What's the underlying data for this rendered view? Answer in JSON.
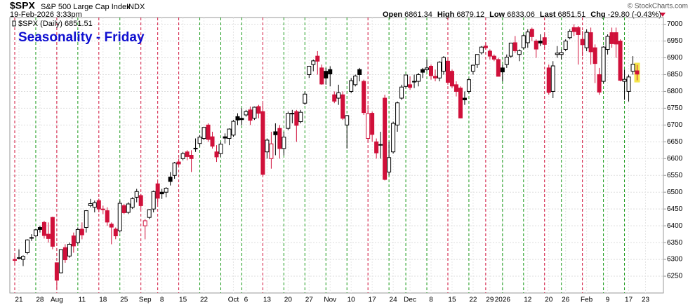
{
  "chart_data": {
    "type": "candlestick",
    "header": {
      "symbol": "$SPX",
      "name": "S&P 500 Large Cap Index",
      "exchange": "INDX",
      "date": "19-Feb-2026 3:33pm",
      "stats": [
        {
          "label": "Open",
          "value": "6861.34"
        },
        {
          "label": "High",
          "value": "6879.12"
        },
        {
          "label": "Low",
          "value": "6833.06"
        },
        {
          "label": "Last",
          "value": "6851.51"
        },
        {
          "label": "Chg",
          "value": "-29.80 (-0.43%)"
        }
      ],
      "copyright": "© StockCharts.com"
    },
    "legend": "$SPX (Daily) 6851.51",
    "title": "Seasonality - Friday",
    "up_color": "#000000",
    "down_color": "#d0103a",
    "friday_up_color": "#1a9a1a",
    "friday_down_color": "#d0103a",
    "highlight_color": "#f5e64a",
    "title_color": "#1010d0",
    "ylim": [
      6200,
      7020
    ],
    "yticks": [
      6250,
      6300,
      6350,
      6400,
      6450,
      6500,
      6550,
      6600,
      6650,
      6700,
      6750,
      6800,
      6850,
      6900,
      6950,
      7000
    ],
    "xticks": [
      {
        "value": "2025-07-21",
        "label": "21"
      },
      {
        "value": "2025-07-28",
        "label": "28"
      },
      {
        "value": "2025-08-01",
        "label": "Aug"
      },
      {
        "value": "2025-08-11",
        "label": "11"
      },
      {
        "value": "2025-08-18",
        "label": "18"
      },
      {
        "value": "2025-08-25",
        "label": "25"
      },
      {
        "value": "2025-09-02",
        "label": "Sep"
      },
      {
        "value": "2025-09-08",
        "label": "8"
      },
      {
        "value": "2025-09-15",
        "label": "15"
      },
      {
        "value": "2025-09-22",
        "label": "22"
      },
      {
        "value": "2025-10-01",
        "label": "Oct"
      },
      {
        "value": "2025-10-06",
        "label": "6"
      },
      {
        "value": "2025-10-13",
        "label": "13"
      },
      {
        "value": "2025-10-20",
        "label": "20"
      },
      {
        "value": "2025-10-27",
        "label": "27"
      },
      {
        "value": "2025-11-03",
        "label": "Nov"
      },
      {
        "value": "2025-11-10",
        "label": "10"
      },
      {
        "value": "2025-11-17",
        "label": "17"
      },
      {
        "value": "2025-11-24",
        "label": "24"
      },
      {
        "value": "2025-12-01",
        "label": "Dec"
      },
      {
        "value": "2025-12-08",
        "label": "8"
      },
      {
        "value": "2025-12-15",
        "label": "15"
      },
      {
        "value": "2025-12-22",
        "label": "22"
      },
      {
        "value": "2025-12-29",
        "label": "29"
      },
      {
        "value": "2026-01-02",
        "label": "2026"
      },
      {
        "value": "2026-01-12",
        "label": "12"
      },
      {
        "value": "2026-01-20",
        "label": "20"
      },
      {
        "value": "2026-01-26",
        "label": "26"
      },
      {
        "value": "2026-02-02",
        "label": "Feb"
      },
      {
        "value": "2026-02-09",
        "label": "9"
      },
      {
        "value": "2026-02-17",
        "label": "17"
      },
      {
        "value": "2026-02-23",
        "label": "23"
      }
    ],
    "x": [
      "2025-07-18",
      "2025-07-21",
      "2025-07-22",
      "2025-07-23",
      "2025-07-24",
      "2025-07-25",
      "2025-07-28",
      "2025-07-29",
      "2025-07-30",
      "2025-07-31",
      "2025-08-01",
      "2025-08-04",
      "2025-08-05",
      "2025-08-06",
      "2025-08-07",
      "2025-08-08",
      "2025-08-11",
      "2025-08-12",
      "2025-08-13",
      "2025-08-14",
      "2025-08-15",
      "2025-08-18",
      "2025-08-19",
      "2025-08-20",
      "2025-08-21",
      "2025-08-22",
      "2025-08-25",
      "2025-08-26",
      "2025-08-27",
      "2025-08-28",
      "2025-08-29",
      "2025-09-02",
      "2025-09-03",
      "2025-09-04",
      "2025-09-05",
      "2025-09-08",
      "2025-09-09",
      "2025-09-10",
      "2025-09-11",
      "2025-09-12",
      "2025-09-15",
      "2025-09-16",
      "2025-09-17",
      "2025-09-18",
      "2025-09-19",
      "2025-09-22",
      "2025-09-23",
      "2025-09-24",
      "2025-09-25",
      "2025-09-26",
      "2025-09-29",
      "2025-09-30",
      "2025-10-01",
      "2025-10-02",
      "2025-10-03",
      "2025-10-06",
      "2025-10-07",
      "2025-10-08",
      "2025-10-09",
      "2025-10-10",
      "2025-10-13",
      "2025-10-14",
      "2025-10-15",
      "2025-10-16",
      "2025-10-17",
      "2025-10-20",
      "2025-10-21",
      "2025-10-22",
      "2025-10-23",
      "2025-10-24",
      "2025-10-27",
      "2025-10-28",
      "2025-10-29",
      "2025-10-30",
      "2025-10-31",
      "2025-11-03",
      "2025-11-04",
      "2025-11-05",
      "2025-11-06",
      "2025-11-07",
      "2025-11-10",
      "2025-11-11",
      "2025-11-12",
      "2025-11-13",
      "2025-11-14",
      "2025-11-17",
      "2025-11-18",
      "2025-11-19",
      "2025-11-20",
      "2025-11-21",
      "2025-11-24",
      "2025-11-25",
      "2025-11-26",
      "2025-11-28",
      "2025-12-01",
      "2025-12-02",
      "2025-12-03",
      "2025-12-04",
      "2025-12-05",
      "2025-12-08",
      "2025-12-09",
      "2025-12-10",
      "2025-12-11",
      "2025-12-12",
      "2025-12-15",
      "2025-12-16",
      "2025-12-17",
      "2025-12-18",
      "2025-12-19",
      "2025-12-22",
      "2025-12-23",
      "2025-12-24",
      "2025-12-26",
      "2025-12-29",
      "2025-12-30",
      "2025-12-31",
      "2026-01-02",
      "2026-01-05",
      "2026-01-06",
      "2026-01-07",
      "2026-01-08",
      "2026-01-09",
      "2026-01-12",
      "2026-01-13",
      "2026-01-14",
      "2026-01-15",
      "2026-01-16",
      "2026-01-20",
      "2026-01-21",
      "2026-01-22",
      "2026-01-23",
      "2026-01-26",
      "2026-01-27",
      "2026-01-28",
      "2026-01-29",
      "2026-01-30",
      "2026-02-02",
      "2026-02-03",
      "2026-02-04",
      "2026-02-05",
      "2026-02-06",
      "2026-02-09",
      "2026-02-10",
      "2026-02-11",
      "2026-02-12",
      "2026-02-13",
      "2026-02-17",
      "2026-02-18",
      "2026-02-19"
    ],
    "ohlc": [
      [
        6300,
        6315,
        6285,
        6297
      ],
      [
        6305,
        6330,
        6300,
        6305
      ],
      [
        6300,
        6312,
        6280,
        6309
      ],
      [
        6320,
        6360,
        6315,
        6358
      ],
      [
        6365,
        6375,
        6355,
        6363
      ],
      [
        6370,
        6390,
        6365,
        6388
      ],
      [
        6395,
        6400,
        6380,
        6389
      ],
      [
        6410,
        6415,
        6362,
        6371
      ],
      [
        6375,
        6410,
        6350,
        6362
      ],
      [
        6425,
        6427,
        6330,
        6339
      ],
      [
        6290,
        6290,
        6212,
        6238
      ],
      [
        6260,
        6330,
        6258,
        6329
      ],
      [
        6335,
        6345,
        6290,
        6299
      ],
      [
        6310,
        6350,
        6305,
        6345
      ],
      [
        6370,
        6380,
        6320,
        6340
      ],
      [
        6350,
        6395,
        6345,
        6389
      ],
      [
        6390,
        6410,
        6360,
        6373
      ],
      [
        6395,
        6446,
        6380,
        6445
      ],
      [
        6460,
        6480,
        6455,
        6466
      ],
      [
        6455,
        6475,
        6440,
        6469
      ],
      [
        6475,
        6481,
        6440,
        6450
      ],
      [
        6450,
        6460,
        6435,
        6449
      ],
      [
        6445,
        6455,
        6400,
        6411
      ],
      [
        6405,
        6410,
        6345,
        6396
      ],
      [
        6390,
        6395,
        6360,
        6370
      ],
      [
        6385,
        6475,
        6380,
        6467
      ],
      [
        6460,
        6465,
        6435,
        6439
      ],
      [
        6440,
        6470,
        6435,
        6465
      ],
      [
        6455,
        6485,
        6450,
        6481
      ],
      [
        6485,
        6510,
        6470,
        6502
      ],
      [
        6490,
        6495,
        6450,
        6460
      ],
      [
        6400,
        6420,
        6360,
        6415
      ],
      [
        6425,
        6450,
        6420,
        6448
      ],
      [
        6450,
        6505,
        6440,
        6502
      ],
      [
        6525,
        6530,
        6465,
        6482
      ],
      [
        6500,
        6510,
        6480,
        6495
      ],
      [
        6500,
        6515,
        6485,
        6512
      ],
      [
        6545,
        6560,
        6520,
        6532
      ],
      [
        6550,
        6590,
        6540,
        6587
      ],
      [
        6590,
        6600,
        6580,
        6584
      ],
      [
        6600,
        6620,
        6595,
        6615
      ],
      [
        6620,
        6625,
        6595,
        6606
      ],
      [
        6610,
        6625,
        6560,
        6600
      ],
      [
        6630,
        6660,
        6620,
        6631
      ],
      [
        6645,
        6670,
        6635,
        6664
      ],
      [
        6660,
        6695,
        6655,
        6693
      ],
      [
        6700,
        6705,
        6650,
        6657
      ],
      [
        6665,
        6680,
        6630,
        6637
      ],
      [
        6620,
        6640,
        6590,
        6605
      ],
      [
        6615,
        6650,
        6605,
        6643
      ],
      [
        6665,
        6675,
        6645,
        6661
      ],
      [
        6660,
        6690,
        6640,
        6688
      ],
      [
        6670,
        6715,
        6665,
        6711
      ],
      [
        6725,
        6735,
        6700,
        6715
      ],
      [
        6720,
        6750,
        6700,
        6716
      ],
      [
        6730,
        6745,
        6725,
        6740
      ],
      [
        6745,
        6755,
        6700,
        6714
      ],
      [
        6720,
        6755,
        6715,
        6753
      ],
      [
        6755,
        6760,
        6720,
        6735
      ],
      [
        6740,
        6765,
        6550,
        6553
      ],
      [
        6620,
        6660,
        6600,
        6655
      ],
      [
        6600,
        6680,
        6570,
        6644
      ],
      [
        6680,
        6705,
        6610,
        6671
      ],
      [
        6690,
        6700,
        6600,
        6630
      ],
      [
        6630,
        6680,
        6610,
        6664
      ],
      [
        6690,
        6740,
        6685,
        6735
      ],
      [
        6735,
        6745,
        6705,
        6735
      ],
      [
        6740,
        6745,
        6650,
        6699
      ],
      [
        6710,
        6745,
        6705,
        6738
      ],
      [
        6765,
        6800,
        6760,
        6792
      ],
      [
        6850,
        6876,
        6840,
        6875
      ],
      [
        6880,
        6895,
        6860,
        6891
      ],
      [
        6905,
        6920,
        6850,
        6890
      ],
      [
        6870,
        6880,
        6820,
        6822
      ],
      [
        6860,
        6870,
        6820,
        6840
      ],
      [
        6865,
        6875,
        6815,
        6852
      ],
      [
        6790,
        6800,
        6765,
        6771
      ],
      [
        6780,
        6820,
        6760,
        6796
      ],
      [
        6790,
        6800,
        6715,
        6720
      ],
      [
        6700,
        6730,
        6630,
        6728
      ],
      [
        6800,
        6840,
        6795,
        6832
      ],
      [
        6820,
        6850,
        6815,
        6846
      ],
      [
        6865,
        6870,
        6830,
        6850
      ],
      [
        6830,
        6835,
        6730,
        6737
      ],
      [
        6660,
        6760,
        6650,
        6734
      ],
      [
        6735,
        6740,
        6650,
        6672
      ],
      [
        6650,
        6660,
        6600,
        6617
      ],
      [
        6640,
        6680,
        6600,
        6642
      ],
      [
        6780,
        6790,
        6535,
        6538
      ],
      [
        6560,
        6650,
        6550,
        6603
      ],
      [
        6620,
        6710,
        6615,
        6705
      ],
      [
        6700,
        6770,
        6680,
        6766
      ],
      [
        6780,
        6820,
        6775,
        6813
      ],
      [
        6815,
        6850,
        6810,
        6849
      ],
      [
        6820,
        6845,
        6805,
        6812
      ],
      [
        6830,
        6850,
        6810,
        6829
      ],
      [
        6830,
        6855,
        6815,
        6850
      ],
      [
        6865,
        6870,
        6840,
        6857
      ],
      [
        6865,
        6895,
        6860,
        6870
      ],
      [
        6875,
        6880,
        6835,
        6847
      ],
      [
        6845,
        6865,
        6830,
        6840
      ],
      [
        6840,
        6890,
        6830,
        6887
      ],
      [
        6860,
        6905,
        6850,
        6901
      ],
      [
        6890,
        6895,
        6820,
        6827
      ],
      [
        6860,
        6865,
        6810,
        6816
      ],
      [
        6820,
        6830,
        6785,
        6800
      ],
      [
        6810,
        6815,
        6720,
        6721
      ],
      [
        6780,
        6800,
        6760,
        6775
      ],
      [
        6800,
        6840,
        6795,
        6835
      ],
      [
        6860,
        6880,
        6850,
        6878
      ],
      [
        6880,
        6910,
        6870,
        6910
      ],
      [
        6915,
        6935,
        6910,
        6932
      ],
      [
        6935,
        6945,
        6925,
        6930
      ],
      [
        6920,
        6925,
        6895,
        6905
      ],
      [
        6905,
        6910,
        6890,
        6896
      ],
      [
        6895,
        6900,
        6845,
        6845
      ],
      [
        6870,
        6880,
        6830,
        6858
      ],
      [
        6880,
        6910,
        6870,
        6902
      ],
      [
        6905,
        6945,
        6900,
        6944
      ],
      [
        6945,
        6965,
        6915,
        6921
      ],
      [
        6910,
        6925,
        6890,
        6921
      ],
      [
        6930,
        6970,
        6925,
        6966
      ],
      [
        6945,
        6985,
        6930,
        6977
      ],
      [
        6985,
        6990,
        6950,
        6963
      ],
      [
        6950,
        6955,
        6900,
        6926
      ],
      [
        6950,
        6970,
        6935,
        6944
      ],
      [
        6960,
        6970,
        6930,
        6940
      ],
      [
        6870,
        6880,
        6790,
        6797
      ],
      [
        6800,
        6890,
        6780,
        6876
      ],
      [
        6910,
        6935,
        6900,
        6914
      ],
      [
        6910,
        6925,
        6895,
        6916
      ],
      [
        6925,
        6955,
        6920,
        6950
      ],
      [
        6960,
        6985,
        6955,
        6979
      ],
      [
        6990,
        7000,
        6965,
        6978
      ],
      [
        6990,
        6995,
        6880,
        6969
      ],
      [
        6955,
        6980,
        6905,
        6939
      ],
      [
        6930,
        6985,
        6920,
        6976
      ],
      [
        6975,
        6990,
        6880,
        6918
      ],
      [
        6930,
        6940,
        6825,
        6883
      ],
      [
        6850,
        6870,
        6790,
        6798
      ],
      [
        6830,
        6935,
        6825,
        6932
      ],
      [
        6925,
        6970,
        6910,
        6964
      ],
      [
        6975,
        6990,
        6930,
        6942
      ],
      [
        6975,
        6990,
        6900,
        6941
      ],
      [
        6950,
        6955,
        6830,
        6833
      ],
      [
        6830,
        6865,
        6775,
        6836
      ],
      [
        6800,
        6850,
        6770,
        6843
      ],
      [
        6860,
        6905,
        6850,
        6881
      ],
      [
        6861.34,
        6879.12,
        6833.06,
        6851.51
      ]
    ]
  }
}
